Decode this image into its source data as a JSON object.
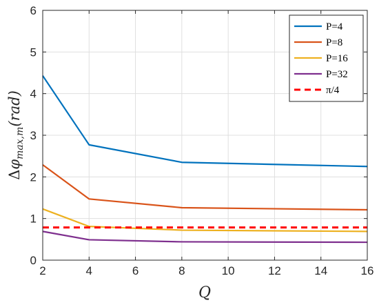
{
  "chart_data": {
    "type": "line",
    "x": [
      2,
      4,
      8,
      16
    ],
    "xlabel": "Q",
    "ylabel": "Δφ_max,m(rad)",
    "xlim": [
      2,
      16
    ],
    "ylim": [
      0,
      6
    ],
    "xticks": [
      2,
      4,
      6,
      8,
      10,
      12,
      14,
      16
    ],
    "yticks": [
      0,
      1,
      2,
      3,
      4,
      5,
      6
    ],
    "grid": true,
    "legend_position": "top-right",
    "series": [
      {
        "name": "P=4",
        "color": "#0072BD",
        "style": "solid",
        "values": [
          4.43,
          2.77,
          2.35,
          2.25
        ]
      },
      {
        "name": "P=8",
        "color": "#D95319",
        "style": "solid",
        "values": [
          2.29,
          1.47,
          1.26,
          1.21
        ]
      },
      {
        "name": "P=16",
        "color": "#EDB120",
        "style": "solid",
        "values": [
          1.23,
          0.81,
          0.72,
          0.69
        ]
      },
      {
        "name": "P=32",
        "color": "#7E2F8E",
        "style": "solid",
        "values": [
          0.69,
          0.49,
          0.44,
          0.43
        ]
      },
      {
        "name": "π/4",
        "color": "#FF0000",
        "style": "dashed",
        "values": [
          0.785,
          0.785,
          0.785,
          0.785
        ]
      }
    ]
  }
}
